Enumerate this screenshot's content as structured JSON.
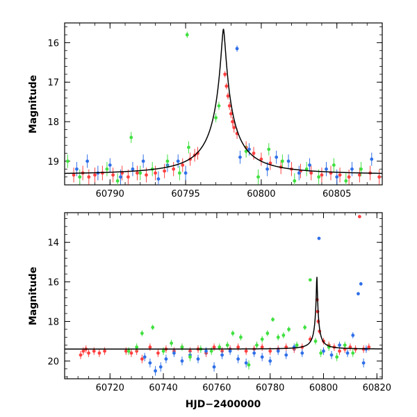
{
  "chart_data": [
    {
      "panel": "top",
      "type": "scatter",
      "ylabel": "Magnitude",
      "xlabel": "",
      "xlim": [
        60787,
        60808
      ],
      "ylim": [
        19.6,
        15.5
      ],
      "y_inverted": true,
      "xticks": [
        "60790",
        "60795",
        "60800",
        "60805"
      ],
      "xtick_values": [
        60790,
        60795,
        60800,
        60805
      ],
      "yticks": [
        "16",
        "17",
        "18",
        "19"
      ],
      "ytick_values": [
        16,
        17,
        18,
        19
      ],
      "model_curve": {
        "peak_x": 60797.5,
        "peak_mag": 15.65,
        "baseline_mag": 19.35,
        "timescale_days": 1.0,
        "color": "#000000"
      },
      "series": [
        {
          "color": "#ff4040",
          "points": [
            [
              60787.6,
              19.35
            ],
            [
              60788.2,
              19.3
            ],
            [
              60788.6,
              19.4
            ],
            [
              60789.0,
              19.35
            ],
            [
              60789.5,
              19.3
            ],
            [
              60790.2,
              19.35
            ],
            [
              60790.8,
              19.3
            ],
            [
              60791.2,
              19.4
            ],
            [
              60791.8,
              19.3
            ],
            [
              60792.4,
              19.35
            ],
            [
              60793.0,
              19.3
            ],
            [
              60793.6,
              19.25
            ],
            [
              60794.2,
              19.2
            ],
            [
              60794.8,
              19.1
            ],
            [
              60795.3,
              18.95
            ],
            [
              60795.6,
              18.85
            ],
            [
              60795.8,
              18.8
            ],
            [
              60797.6,
              16.8
            ],
            [
              60797.7,
              17.1
            ],
            [
              60797.8,
              17.35
            ],
            [
              60797.9,
              17.6
            ],
            [
              60798.0,
              17.8
            ],
            [
              60798.1,
              18.0
            ],
            [
              60798.2,
              18.15
            ],
            [
              60798.4,
              18.3
            ],
            [
              60799.0,
              18.65
            ],
            [
              60799.5,
              18.8
            ],
            [
              60800.0,
              18.95
            ],
            [
              60800.6,
              19.05
            ],
            [
              60801.3,
              19.15
            ],
            [
              60802.0,
              19.2
            ],
            [
              60802.6,
              19.25
            ],
            [
              60803.3,
              19.3
            ],
            [
              60804.0,
              19.35
            ],
            [
              60804.6,
              19.3
            ],
            [
              60805.2,
              19.35
            ],
            [
              60805.8,
              19.4
            ],
            [
              60806.5,
              19.35
            ],
            [
              60807.2,
              19.3
            ],
            [
              60807.8,
              19.4
            ]
          ]
        },
        {
          "color": "#3070e8",
          "points": [
            [
              60787.8,
              19.2
            ],
            [
              60788.5,
              19.0
            ],
            [
              60789.2,
              19.3
            ],
            [
              60790.0,
              19.1
            ],
            [
              60790.7,
              19.4
            ],
            [
              60791.5,
              19.2
            ],
            [
              60792.2,
              19.0
            ],
            [
              60793.2,
              19.45
            ],
            [
              60793.8,
              19.1
            ],
            [
              60794.5,
              19.0
            ],
            [
              60795.0,
              19.3
            ],
            [
              60798.4,
              16.15
            ],
            [
              60798.6,
              18.9
            ],
            [
              60799.2,
              18.7
            ],
            [
              60800.4,
              19.2
            ],
            [
              60801.0,
              18.9
            ],
            [
              60801.8,
              19.0
            ],
            [
              60802.5,
              19.3
            ],
            [
              60803.2,
              19.1
            ],
            [
              60804.3,
              19.2
            ],
            [
              60805.0,
              19.4
            ],
            [
              60806.0,
              19.2
            ],
            [
              60807.3,
              18.95
            ]
          ]
        },
        {
          "color": "#40e040",
          "points": [
            [
              60787.2,
              19.0
            ],
            [
              60788.0,
              19.4
            ],
            [
              60789.8,
              19.2
            ],
            [
              60790.5,
              19.5
            ],
            [
              60791.4,
              18.4
            ],
            [
              60792.0,
              19.3
            ],
            [
              60792.8,
              19.2
            ],
            [
              60793.8,
              19.0
            ],
            [
              60794.6,
              19.3
            ],
            [
              60795.1,
              15.8
            ],
            [
              60795.2,
              18.65
            ],
            [
              60797.0,
              17.9
            ],
            [
              60797.2,
              17.6
            ],
            [
              60799.0,
              18.75
            ],
            [
              60799.8,
              19.4
            ],
            [
              60800.5,
              18.7
            ],
            [
              60801.4,
              19.0
            ],
            [
              60802.2,
              19.5
            ],
            [
              60803.0,
              19.2
            ],
            [
              60803.8,
              19.4
            ],
            [
              60804.8,
              19.1
            ],
            [
              60805.6,
              19.5
            ],
            [
              60806.6,
              19.2
            ]
          ]
        }
      ]
    },
    {
      "panel": "bottom",
      "type": "scatter",
      "ylabel": "Magnitude",
      "xlabel": "HJD−2400000",
      "xlim": [
        60703,
        60822
      ],
      "ylim": [
        20.9,
        12.5
      ],
      "y_inverted": true,
      "xticks": [
        "60720",
        "60740",
        "60760",
        "60780",
        "60800",
        "60820"
      ],
      "xtick_values": [
        60720,
        60740,
        60760,
        60780,
        60800,
        60820
      ],
      "yticks": [
        "14",
        "16",
        "18",
        "20"
      ],
      "ytick_values": [
        14,
        16,
        18,
        20
      ],
      "model_curve": {
        "peak_x": 60797.5,
        "peak_mag": 15.65,
        "baseline_mag": 19.4,
        "timescale_days": 1.0,
        "color": "#000000"
      },
      "series": [
        {
          "color": "#ff4040",
          "points": [
            [
              60709,
              19.7
            ],
            [
              60710,
              19.5
            ],
            [
              60711,
              19.4
            ],
            [
              60712,
              19.6
            ],
            [
              60714,
              19.5
            ],
            [
              60716,
              19.6
            ],
            [
              60718,
              19.5
            ],
            [
              60726,
              19.5
            ],
            [
              60728,
              19.6
            ],
            [
              60730,
              19.5
            ],
            [
              60732,
              19.9
            ],
            [
              60735,
              19.3
            ],
            [
              60738,
              19.6
            ],
            [
              60741,
              19.4
            ],
            [
              60744,
              19.5
            ],
            [
              60747,
              19.3
            ],
            [
              60750,
              19.5
            ],
            [
              60753,
              19.4
            ],
            [
              60756,
              19.6
            ],
            [
              60759,
              19.3
            ],
            [
              60762,
              19.5
            ],
            [
              60765,
              19.4
            ],
            [
              60768,
              19.3
            ],
            [
              60771,
              19.5
            ],
            [
              60774,
              19.4
            ],
            [
              60777,
              19.3
            ],
            [
              60780,
              19.5
            ],
            [
              60783,
              19.4
            ],
            [
              60786,
              19.3
            ],
            [
              60789,
              19.4
            ],
            [
              60792,
              19.3
            ],
            [
              60795,
              18.9
            ],
            [
              60797.6,
              16.9
            ],
            [
              60797.8,
              17.5
            ],
            [
              60798.0,
              18.0
            ],
            [
              60798.5,
              18.5
            ],
            [
              60800,
              19.0
            ],
            [
              60802,
              19.2
            ],
            [
              60804,
              19.3
            ],
            [
              60806,
              19.5
            ],
            [
              60808,
              19.4
            ],
            [
              60810,
              19.3
            ],
            [
              60812,
              19.4
            ],
            [
              60813.5,
              12.7
            ],
            [
              60815,
              19.4
            ],
            [
              60817,
              19.3
            ]
          ]
        },
        {
          "color": "#3070e8",
          "points": [
            [
              60733,
              19.8
            ],
            [
              60735,
              20.1
            ],
            [
              60737,
              20.5
            ],
            [
              60739,
              20.3
            ],
            [
              60741,
              19.9
            ],
            [
              60744,
              19.6
            ],
            [
              60747,
              20.0
            ],
            [
              60750,
              19.7
            ],
            [
              60753,
              19.9
            ],
            [
              60756,
              19.5
            ],
            [
              60759,
              20.3
            ],
            [
              60762,
              19.7
            ],
            [
              60765,
              19.5
            ],
            [
              60768,
              19.9
            ],
            [
              60771,
              20.1
            ],
            [
              60774,
              19.6
            ],
            [
              60777,
              19.8
            ],
            [
              60780,
              20.0
            ],
            [
              60783,
              19.5
            ],
            [
              60786,
              19.7
            ],
            [
              60789,
              19.3
            ],
            [
              60792,
              19.6
            ],
            [
              60798.3,
              13.8
            ],
            [
              60800,
              19.5
            ],
            [
              60803,
              19.7
            ],
            [
              60806,
              19.2
            ],
            [
              60809,
              19.6
            ],
            [
              60811,
              18.7
            ],
            [
              60813,
              16.6
            ],
            [
              60814,
              16.1
            ],
            [
              60815,
              20.1
            ],
            [
              60816,
              19.4
            ]
          ]
        },
        {
          "color": "#40e040",
          "points": [
            [
              60727,
              19.5
            ],
            [
              60730,
              19.3
            ],
            [
              60732,
              18.6
            ],
            [
              60736,
              18.3
            ],
            [
              60740,
              19.5
            ],
            [
              60743,
              19.1
            ],
            [
              60747,
              19.3
            ],
            [
              60750,
              19.8
            ],
            [
              60754,
              19.4
            ],
            [
              60758,
              19.5
            ],
            [
              60761,
              19.3
            ],
            [
              60764,
              19.2
            ],
            [
              60766,
              18.6
            ],
            [
              60769,
              18.8
            ],
            [
              60772,
              20.2
            ],
            [
              60775,
              19.2
            ],
            [
              60777,
              18.9
            ],
            [
              60779,
              18.6
            ],
            [
              60781,
              17.9
            ],
            [
              60783,
              18.8
            ],
            [
              60785,
              18.7
            ],
            [
              60787,
              18.4
            ],
            [
              60790,
              19.2
            ],
            [
              60793,
              18.3
            ],
            [
              60795,
              15.9
            ],
            [
              60797,
              19.0
            ],
            [
              60799,
              19.6
            ],
            [
              60802,
              19.3
            ],
            [
              60805,
              19.8
            ],
            [
              60808,
              19.2
            ],
            [
              60811,
              19.6
            ]
          ]
        }
      ]
    }
  ]
}
